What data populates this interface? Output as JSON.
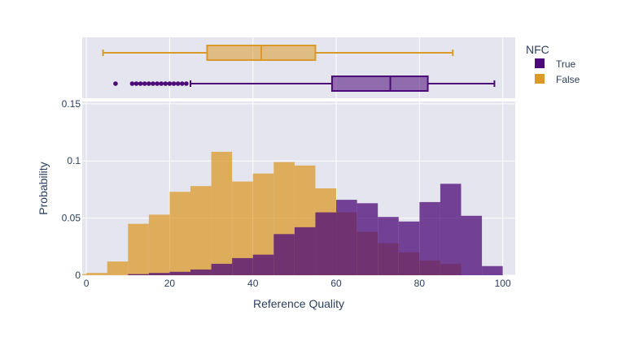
{
  "chart_data": {
    "type": "histogram",
    "xlabel": "Reference Quality",
    "ylabel": "Probability",
    "xlim": [
      -1,
      103
    ],
    "ylim": [
      0,
      0.152
    ],
    "xticks": [
      "0",
      "20",
      "40",
      "60",
      "80",
      "100"
    ],
    "yticks": [
      "0",
      "0.05",
      "0.1",
      "0.15"
    ],
    "bin_width": 5,
    "legend": {
      "title": "NFC",
      "placement": "top-right"
    },
    "series": [
      {
        "name": "True",
        "color": "#4b0a78",
        "bin_starts": [
          10,
          15,
          20,
          25,
          30,
          35,
          40,
          45,
          50,
          55,
          60,
          65,
          70,
          75,
          80,
          85,
          90,
          95
        ],
        "values": [
          0.001,
          0.002,
          0.003,
          0.005,
          0.01,
          0.015,
          0.018,
          0.036,
          0.042,
          0.055,
          0.066,
          0.063,
          0.051,
          0.047,
          0.064,
          0.08,
          0.052,
          0.008
        ],
        "box": {
          "min": 25,
          "q1": 59,
          "median": 73,
          "q3": 82,
          "max": 98,
          "outliers": [
            7,
            11,
            12,
            13,
            14,
            15,
            16,
            17,
            18,
            19,
            20,
            21,
            22,
            23,
            24
          ]
        }
      },
      {
        "name": "False",
        "color": "#d99a29",
        "bin_starts": [
          -5,
          0,
          5,
          10,
          15,
          20,
          25,
          30,
          35,
          40,
          45,
          50,
          55,
          60,
          65,
          70,
          75,
          80,
          85
        ],
        "values": [
          0.001,
          0.002,
          0.012,
          0.045,
          0.053,
          0.073,
          0.078,
          0.108,
          0.082,
          0.089,
          0.099,
          0.096,
          0.076,
          0.055,
          0.038,
          0.028,
          0.02,
          0.013,
          0.01
        ],
        "box": {
          "min": 4,
          "q1": 29,
          "median": 42,
          "q3": 55,
          "max": 88,
          "outliers": []
        }
      }
    ]
  }
}
